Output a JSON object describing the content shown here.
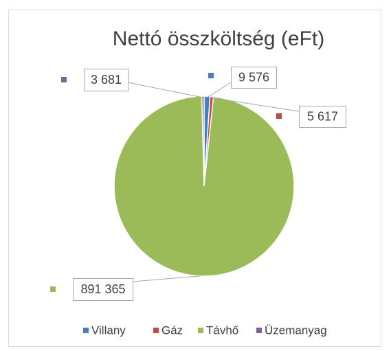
{
  "chart_data": {
    "type": "pie",
    "title": "Nettó összköltség (eFt)",
    "categories": [
      "Villany",
      "Gáz",
      "Távhő",
      "Üzemanyag"
    ],
    "values": [
      9576,
      5617,
      891365,
      3681
    ],
    "value_labels": [
      "9 576",
      "5 617",
      "891 365",
      "3 681"
    ],
    "colors": [
      "#4a7ebb",
      "#be4b48",
      "#9bbb59",
      "#7e60a0"
    ],
    "legend": "bottom"
  }
}
